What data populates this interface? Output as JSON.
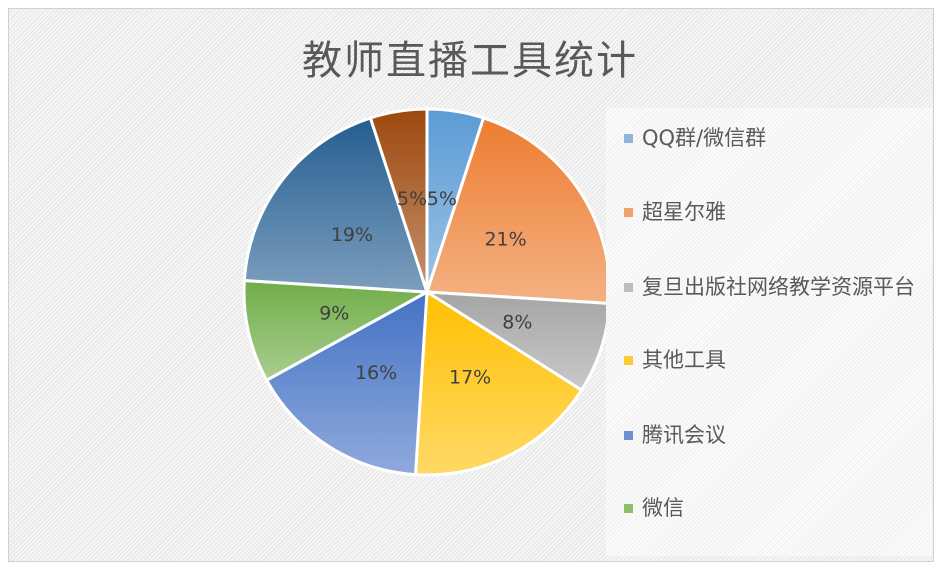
{
  "chart_data": {
    "type": "pie",
    "title": "教师直播工具统计",
    "categories": [
      "QQ群/微信群",
      "超星尔雅",
      "复旦出版社网络教学资源平台",
      "其他工具",
      "腾讯会议",
      "微信",
      "",
      ""
    ],
    "values": [
      5,
      21,
      8,
      17,
      16,
      9,
      19,
      5
    ],
    "data_labels": [
      "5%",
      "21%",
      "8%",
      "17%",
      "16%",
      "9%",
      "19%",
      "5%"
    ],
    "colors": [
      "#5b9bd5",
      "#ed7d31",
      "#a5a5a5",
      "#ffc000",
      "#4472c4",
      "#70ad47",
      "#255e91",
      "#9e480e"
    ],
    "legend_position": "right",
    "legend_visible_entries": [
      "QQ群/微信群",
      "超星尔雅",
      "复旦出版社网络教学资源平台",
      "其他工具",
      "腾讯会议",
      "微信"
    ]
  }
}
